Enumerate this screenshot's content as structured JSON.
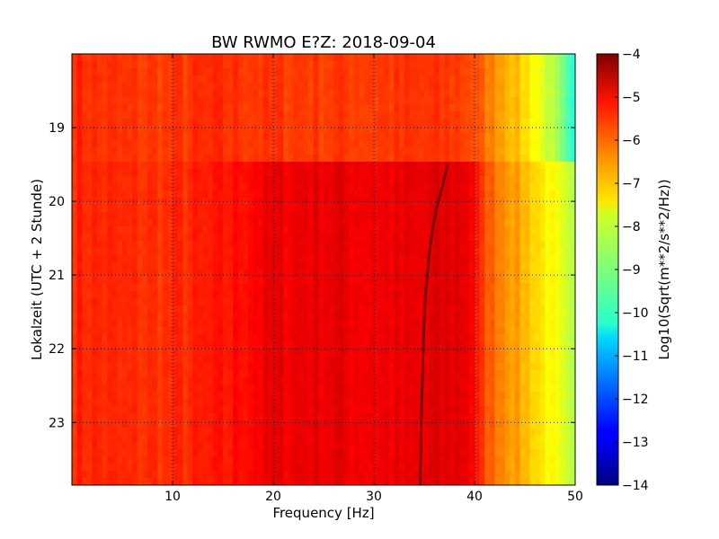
{
  "chart_data": {
    "type": "heatmap",
    "title": "BW RWMO E?Z: 2018-09-04",
    "xlabel": "Frequency [Hz]",
    "ylabel": "Lokalzeit (UTC + 2 Stunde)",
    "xlim": [
      0,
      50
    ],
    "ylim": [
      23.85,
      18.0
    ],
    "x_ticks": [
      10,
      20,
      30,
      40,
      50
    ],
    "x_tick_labels": [
      "10",
      "20",
      "30",
      "40",
      "50"
    ],
    "y_ticks": [
      19,
      20,
      21,
      22,
      23
    ],
    "y_tick_labels": [
      "19",
      "20",
      "21",
      "22",
      "23"
    ],
    "grid": true,
    "colormap": "jet",
    "colorbar": {
      "label": "Log10(Sqrt(m**2/s**2/Hz))",
      "range": [
        -14,
        -4
      ],
      "ticks": [
        -4,
        -5,
        -6,
        -7,
        -8,
        -9,
        -10,
        -11,
        -12,
        -13,
        -14
      ],
      "tick_labels": [
        "−4",
        "−5",
        "−6",
        "−7",
        "−8",
        "−9",
        "−10",
        "−11",
        "−12",
        "−13",
        "−14"
      ]
    },
    "time_break_hour": 19.5,
    "spectral_profile": {
      "frequency_hz": [
        0,
        2,
        5,
        10,
        15,
        18,
        20,
        25,
        30,
        34,
        36,
        38,
        39.5,
        40.5,
        42,
        44,
        46,
        48,
        50
      ],
      "log_amplitude_before_break": [
        -5.6,
        -5.7,
        -5.8,
        -5.8,
        -5.7,
        -5.75,
        -5.8,
        -5.8,
        -5.8,
        -5.8,
        -5.8,
        -5.8,
        -5.9,
        -6.2,
        -6.6,
        -7.1,
        -7.7,
        -8.6,
        -10.2
      ],
      "log_amplitude_after_break": [
        -5.6,
        -5.6,
        -5.7,
        -5.7,
        -5.5,
        -5.2,
        -5.1,
        -5.0,
        -5.1,
        -5.1,
        -5.0,
        -4.95,
        -5.0,
        -5.8,
        -6.3,
        -6.8,
        -7.3,
        -7.9,
        -8.7
      ]
    },
    "drifting_line": {
      "time_hours": [
        19.5,
        19.8,
        20.1,
        20.4,
        20.7,
        21.0,
        21.3,
        21.6,
        22.0,
        22.5,
        23.0,
        23.5,
        23.85
      ],
      "frequency_hz": [
        37.3,
        36.8,
        36.2,
        35.8,
        35.5,
        35.3,
        35.1,
        35.0,
        34.9,
        34.8,
        34.7,
        34.65,
        34.6
      ]
    }
  }
}
